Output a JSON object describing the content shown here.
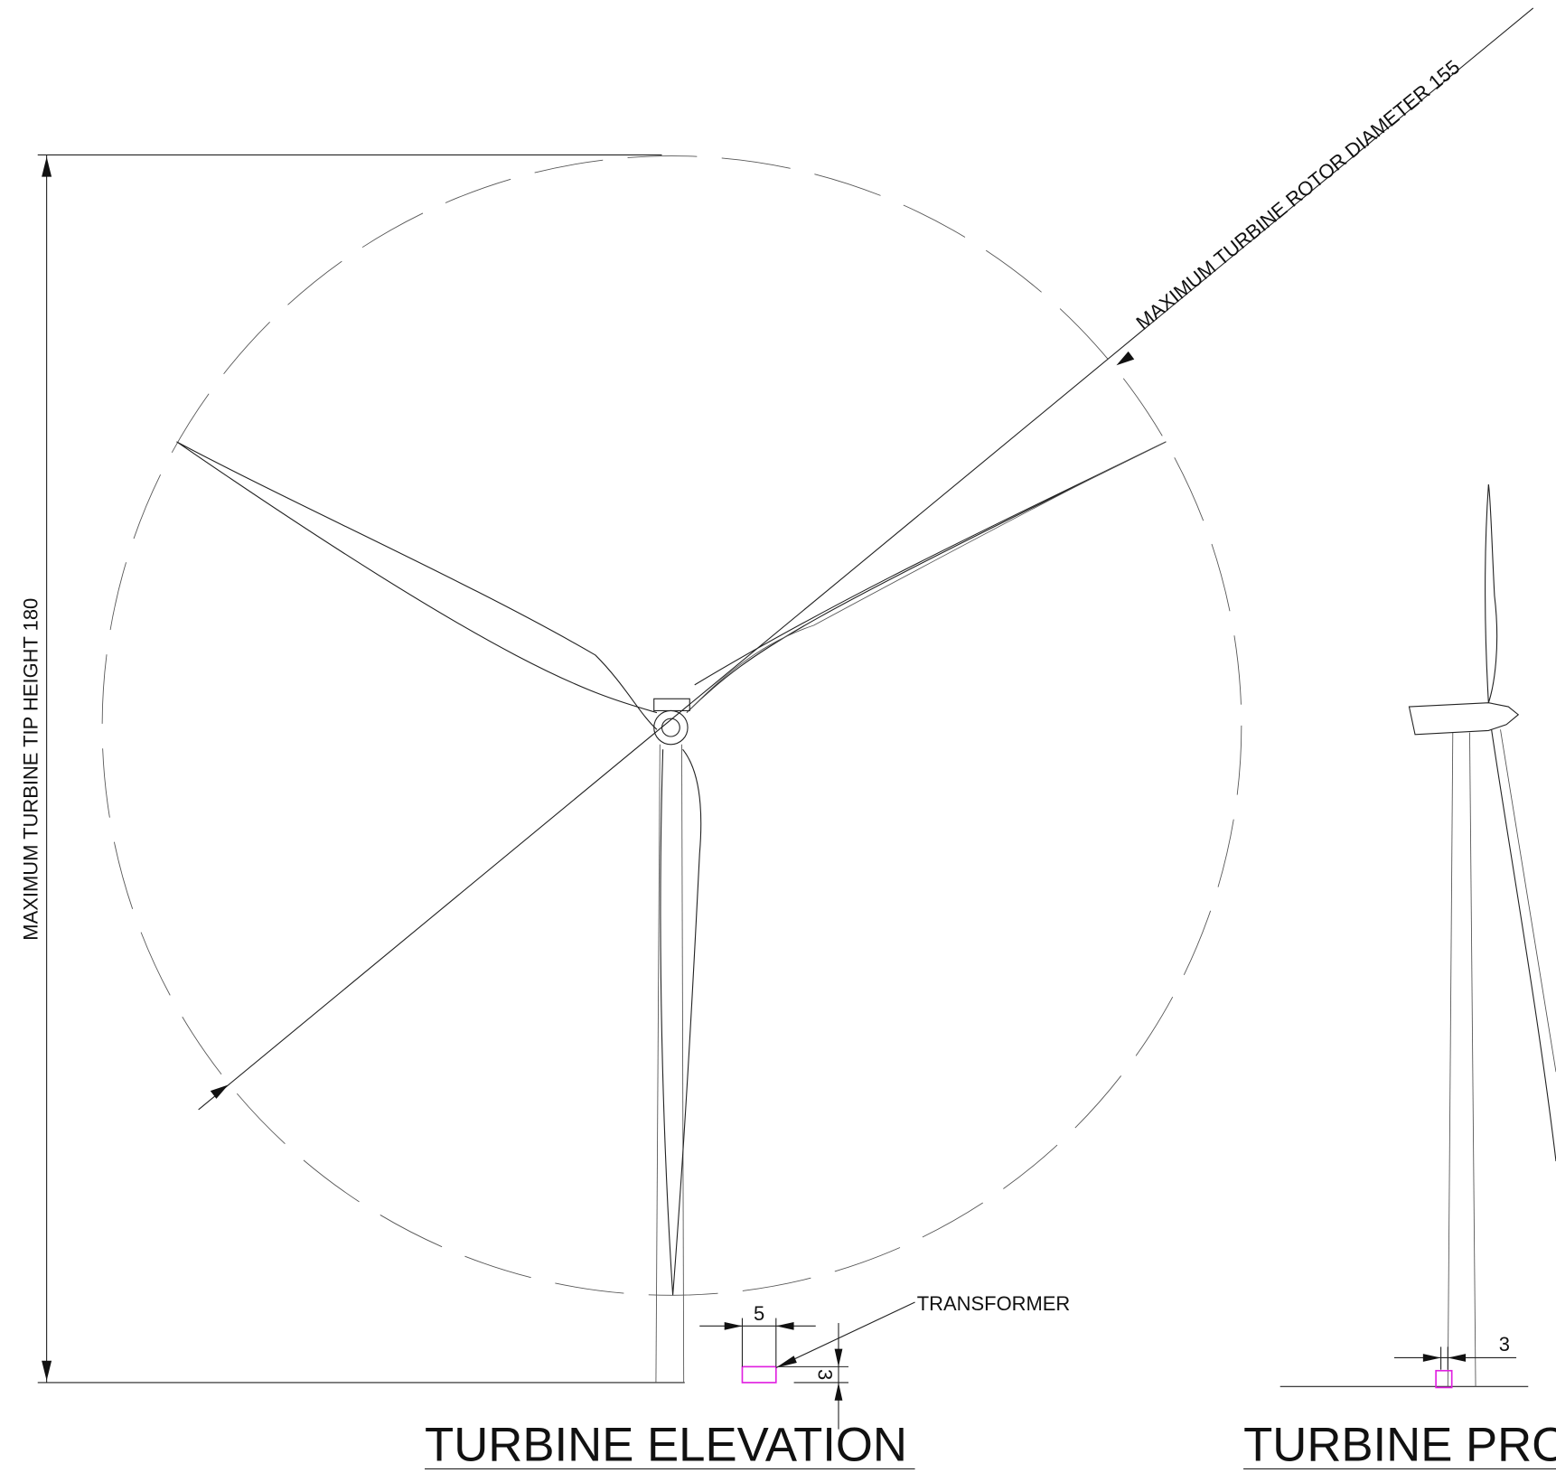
{
  "drawing": {
    "rotor_dimension": "MAXIMUM TURBINE ROTOR DIAMETER 155",
    "tip_height_dimension": "MAXIMUM TURBINE TIP HEIGHT 180",
    "transformer_label": "TRANSFORMER",
    "transformer_width": "5",
    "transformer_height": "3",
    "profile_offset": "3",
    "elevation_title": "TURBINE ELEVATION",
    "profile_title": "TURBINE PRO"
  }
}
